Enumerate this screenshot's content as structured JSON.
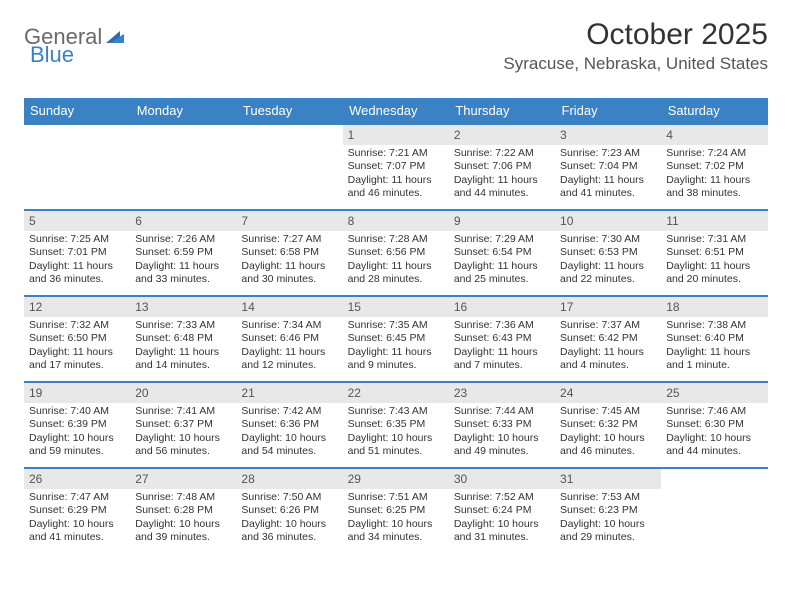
{
  "logo": {
    "text1": "General",
    "text2": "Blue"
  },
  "title": "October 2025",
  "location": "Syracuse, Nebraska, United States",
  "colors": {
    "header_bg": "#3b82c4",
    "header_text": "#ffffff",
    "daynum_bg": "#e8e8e8",
    "daynum_text": "#555555",
    "body_text": "#333333",
    "logo_gray": "#6a6a6a",
    "logo_blue": "#3b82c4"
  },
  "day_headers": [
    "Sunday",
    "Monday",
    "Tuesday",
    "Wednesday",
    "Thursday",
    "Friday",
    "Saturday"
  ],
  "weeks": [
    [
      null,
      null,
      null,
      {
        "n": "1",
        "sr": "7:21 AM",
        "ss": "7:07 PM",
        "dl": "11 hours and 46 minutes."
      },
      {
        "n": "2",
        "sr": "7:22 AM",
        "ss": "7:06 PM",
        "dl": "11 hours and 44 minutes."
      },
      {
        "n": "3",
        "sr": "7:23 AM",
        "ss": "7:04 PM",
        "dl": "11 hours and 41 minutes."
      },
      {
        "n": "4",
        "sr": "7:24 AM",
        "ss": "7:02 PM",
        "dl": "11 hours and 38 minutes."
      }
    ],
    [
      {
        "n": "5",
        "sr": "7:25 AM",
        "ss": "7:01 PM",
        "dl": "11 hours and 36 minutes."
      },
      {
        "n": "6",
        "sr": "7:26 AM",
        "ss": "6:59 PM",
        "dl": "11 hours and 33 minutes."
      },
      {
        "n": "7",
        "sr": "7:27 AM",
        "ss": "6:58 PM",
        "dl": "11 hours and 30 minutes."
      },
      {
        "n": "8",
        "sr": "7:28 AM",
        "ss": "6:56 PM",
        "dl": "11 hours and 28 minutes."
      },
      {
        "n": "9",
        "sr": "7:29 AM",
        "ss": "6:54 PM",
        "dl": "11 hours and 25 minutes."
      },
      {
        "n": "10",
        "sr": "7:30 AM",
        "ss": "6:53 PM",
        "dl": "11 hours and 22 minutes."
      },
      {
        "n": "11",
        "sr": "7:31 AM",
        "ss": "6:51 PM",
        "dl": "11 hours and 20 minutes."
      }
    ],
    [
      {
        "n": "12",
        "sr": "7:32 AM",
        "ss": "6:50 PM",
        "dl": "11 hours and 17 minutes."
      },
      {
        "n": "13",
        "sr": "7:33 AM",
        "ss": "6:48 PM",
        "dl": "11 hours and 14 minutes."
      },
      {
        "n": "14",
        "sr": "7:34 AM",
        "ss": "6:46 PM",
        "dl": "11 hours and 12 minutes."
      },
      {
        "n": "15",
        "sr": "7:35 AM",
        "ss": "6:45 PM",
        "dl": "11 hours and 9 minutes."
      },
      {
        "n": "16",
        "sr": "7:36 AM",
        "ss": "6:43 PM",
        "dl": "11 hours and 7 minutes."
      },
      {
        "n": "17",
        "sr": "7:37 AM",
        "ss": "6:42 PM",
        "dl": "11 hours and 4 minutes."
      },
      {
        "n": "18",
        "sr": "7:38 AM",
        "ss": "6:40 PM",
        "dl": "11 hours and 1 minute."
      }
    ],
    [
      {
        "n": "19",
        "sr": "7:40 AM",
        "ss": "6:39 PM",
        "dl": "10 hours and 59 minutes."
      },
      {
        "n": "20",
        "sr": "7:41 AM",
        "ss": "6:37 PM",
        "dl": "10 hours and 56 minutes."
      },
      {
        "n": "21",
        "sr": "7:42 AM",
        "ss": "6:36 PM",
        "dl": "10 hours and 54 minutes."
      },
      {
        "n": "22",
        "sr": "7:43 AM",
        "ss": "6:35 PM",
        "dl": "10 hours and 51 minutes."
      },
      {
        "n": "23",
        "sr": "7:44 AM",
        "ss": "6:33 PM",
        "dl": "10 hours and 49 minutes."
      },
      {
        "n": "24",
        "sr": "7:45 AM",
        "ss": "6:32 PM",
        "dl": "10 hours and 46 minutes."
      },
      {
        "n": "25",
        "sr": "7:46 AM",
        "ss": "6:30 PM",
        "dl": "10 hours and 44 minutes."
      }
    ],
    [
      {
        "n": "26",
        "sr": "7:47 AM",
        "ss": "6:29 PM",
        "dl": "10 hours and 41 minutes."
      },
      {
        "n": "27",
        "sr": "7:48 AM",
        "ss": "6:28 PM",
        "dl": "10 hours and 39 minutes."
      },
      {
        "n": "28",
        "sr": "7:50 AM",
        "ss": "6:26 PM",
        "dl": "10 hours and 36 minutes."
      },
      {
        "n": "29",
        "sr": "7:51 AM",
        "ss": "6:25 PM",
        "dl": "10 hours and 34 minutes."
      },
      {
        "n": "30",
        "sr": "7:52 AM",
        "ss": "6:24 PM",
        "dl": "10 hours and 31 minutes."
      },
      {
        "n": "31",
        "sr": "7:53 AM",
        "ss": "6:23 PM",
        "dl": "10 hours and 29 minutes."
      },
      null
    ]
  ],
  "labels": {
    "sunrise": "Sunrise: ",
    "sunset": "Sunset: ",
    "daylight": "Daylight: "
  }
}
